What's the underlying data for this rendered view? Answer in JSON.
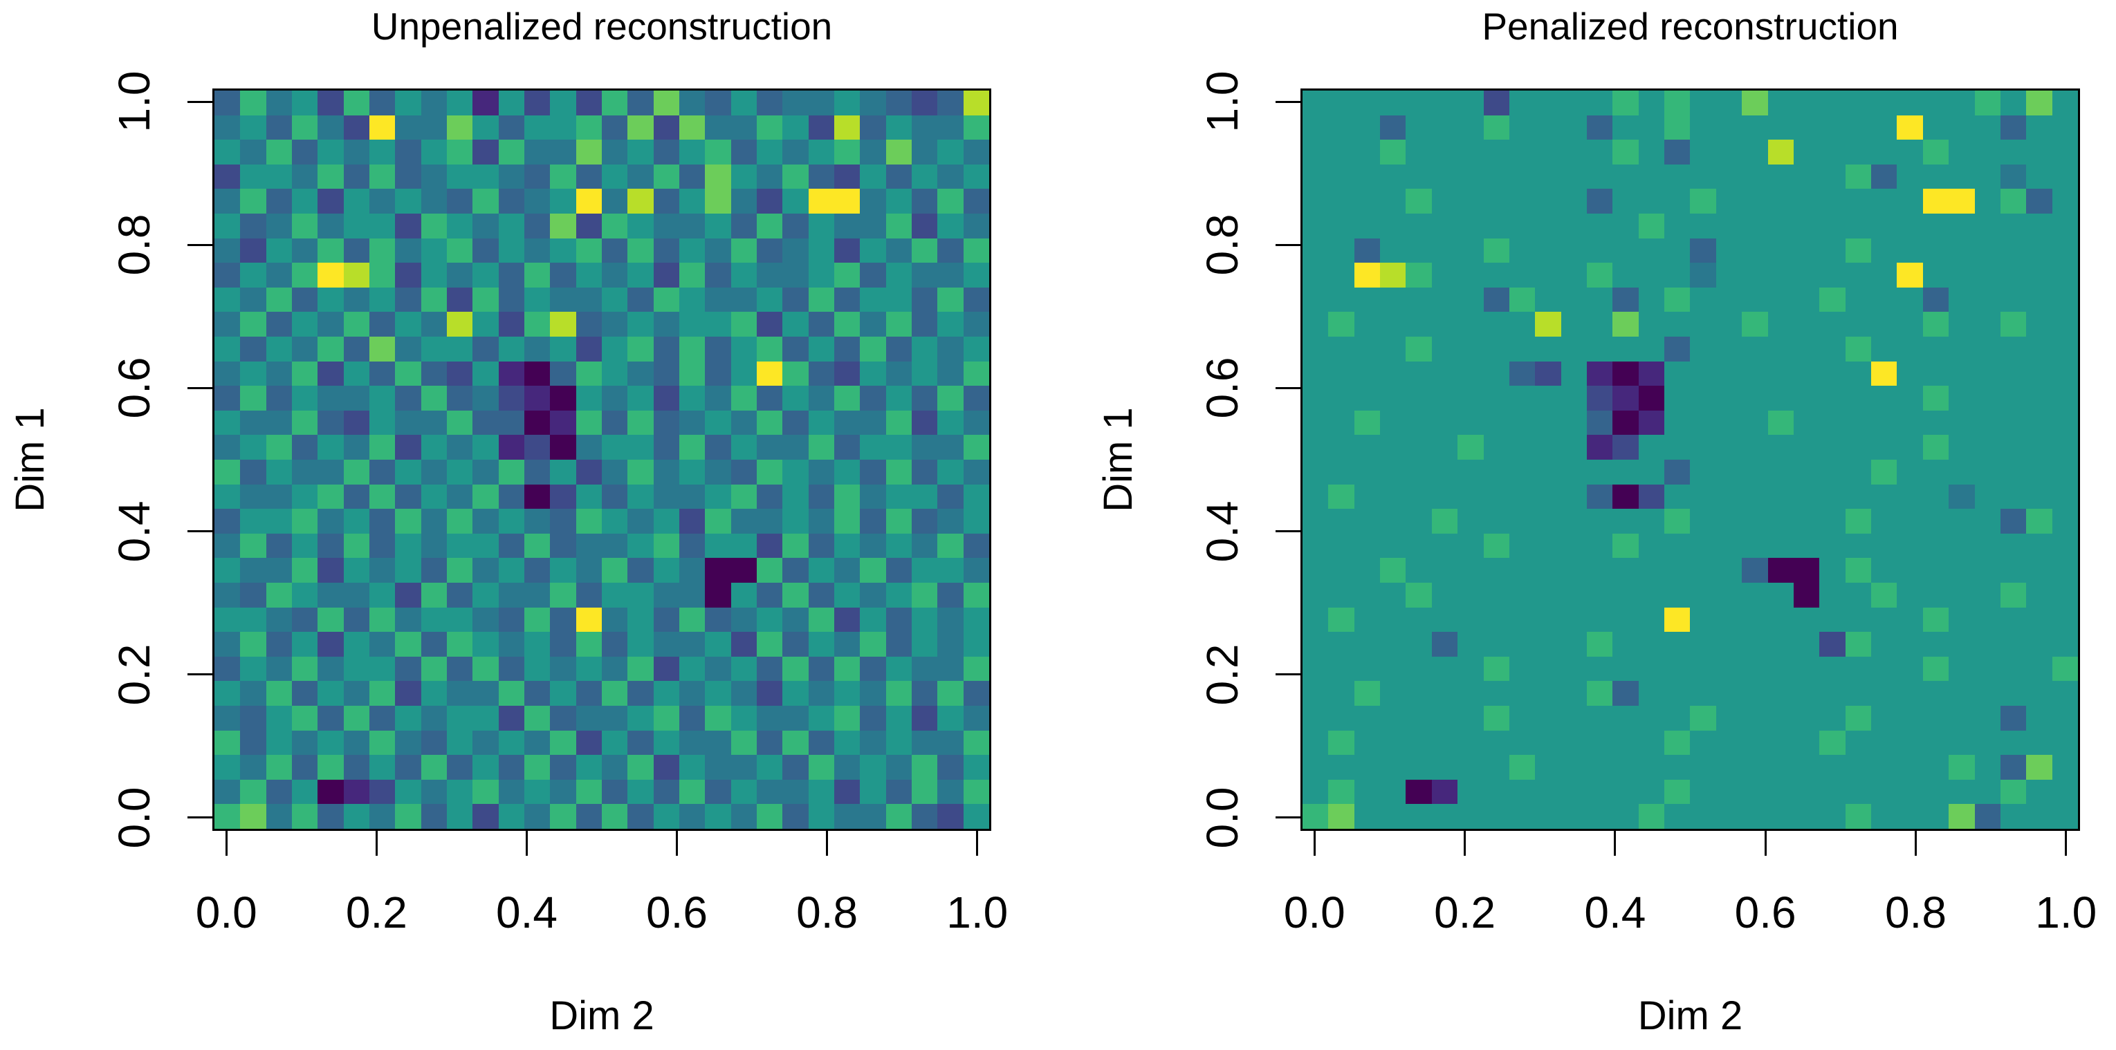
{
  "figure": {
    "background": "#ffffff",
    "text_color": "#000000",
    "panel_count": 2
  },
  "chart_data": [
    {
      "type": "heatmap",
      "id": "unpenalized",
      "title": "Unpenalized reconstruction",
      "xlabel": "Dim 2",
      "ylabel": "Dim 1",
      "x_range": [
        0.0,
        1.0
      ],
      "y_range": [
        0.0,
        1.0
      ],
      "x_ticks": [
        "0.0",
        "0.2",
        "0.4",
        "0.6",
        "0.8",
        "1.0"
      ],
      "y_ticks": [
        "0.0",
        "0.2",
        "0.4",
        "0.6",
        "0.8",
        "1.0"
      ],
      "grid_size": [
        30,
        30
      ],
      "colormap": "viridis",
      "palette": [
        "#440154",
        "#46277c",
        "#3e4a89",
        "#35648d",
        "#2a788e",
        "#21988c",
        "#35b779",
        "#6ccd5a",
        "#b8de29",
        "#fde725"
      ],
      "values_note": "Estimated cell intensities quantized 0-9 (0=dark purple, 9=yellow); rows listed top (Dim1=1.0) to bottom (Dim1=0.0), 30 columns left (Dim2=0.0) to right (Dim2=1.0). Unpenalized panel is dense uniform noise.",
      "rows": [
        "364526354515252637435344543238",
        "453642944753556372744652835446",
        "546354535626447453563545647454",
        "255463634554363546375463253545",
        "463525454363459483574259945363",
        "534645526545372654453635446254",
        "425463645635456363546345254636",
        "354698625453635452635445635445",
        "546354536263544536544536355363",
        "463546354852683454556253646354",
        "535463745535452563635635363545",
        "454625363251036543635963254546",
        "363544536342105452546354635363",
        "544632544633016363454635446254",
        "456354625451204553635446355446",
        "635446354546352464543654536354",
        "544563635463025354456353645535",
        "355645364645436545264454636345",
        "463536354553634456355263545463",
        "544625453645354635400635463554",
        "436544526354463554405363545636",
        "554363645543639453634546253545",
        "463525463654536354452635463545",
        "354645536363545462545363635446",
        "546354625446353635454254546363",
        "435636354552634456365445635254",
        "635454643545462535446363545446",
        "546363536353635462544536454635",
        "463501254564546353635445253646",
        "674635463525463635454635446325"
      ]
    },
    {
      "type": "heatmap",
      "id": "penalized",
      "title": "Penalized reconstruction",
      "xlabel": "Dim 2",
      "ylabel": "Dim 1",
      "x_range": [
        0.0,
        1.0
      ],
      "y_range": [
        0.0,
        1.0
      ],
      "x_ticks": [
        "0.0",
        "0.2",
        "0.4",
        "0.6",
        "0.8",
        "1.0"
      ],
      "y_ticks": [
        "0.0",
        "0.2",
        "0.4",
        "0.6",
        "0.8",
        "1.0"
      ],
      "grid_size": [
        30,
        30
      ],
      "colormap": "viridis",
      "palette": [
        "#440154",
        "#46277c",
        "#3e4a89",
        "#35648d",
        "#2a788e",
        "#21988c",
        "#35b779",
        "#6ccd5a",
        "#b8de29",
        "#fde725"
      ],
      "values_note": "Estimated cell intensities quantized 0-9; value 5 is the flat teal background that dominates the penalized (smoothed) reconstruction, with sparse residual features matching the unpenalized panel.",
      "rows": [
        "555555525555656557555555556575",
        "555355565553556555555559555355",
        "555655555555653555855555655555",
        "555555555555555555555635555455",
        "555565555553555655555555995635",
        "555555555555565555555555555555",
        "553555565555555355555655555555",
        "559865555556555455555559555555",
        "555555536555356555556555355555",
        "565555555855755556555555655655",
        "555565555555553555555655555555",
        "555555553251015555555595555555",
        "555555555552105555555555655555",
        "556555555553015555655555555555",
        "555555655551255555555555655555",
        "555555555555553555555565555555",
        "565555555553025555555555545555",
        "555556555555556555555655555365",
        "555555565555655555555555555555",
        "555655555555555553005655555555",
        "555565555555555555505565555655",
        "565555555555559555555555655555",
        "555553555556555555552655555555",
        "555555565555555555555555655556",
        "556555555556355555555555555555",
        "555555565555555655555655555355",
        "565555555555556555556555555555",
        "555555556555555555555555565375",
        "565501555555556555555555555655",
        "675555555555565555555655573555"
      ]
    }
  ]
}
